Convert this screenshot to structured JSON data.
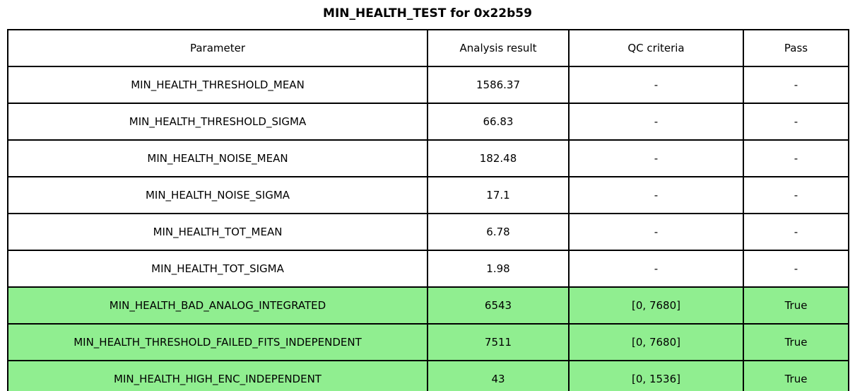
{
  "title": "MIN_HEALTH_TEST for 0x22b59",
  "colors": {
    "pass_row_background": "#90EE90",
    "table_border": "#000000",
    "page_background": "#FFFFFF",
    "text": "#000000"
  },
  "table": {
    "columns": [
      "Parameter",
      "Analysis result",
      "QC criteria",
      "Pass"
    ],
    "rows": [
      {
        "parameter": "MIN_HEALTH_THRESHOLD_MEAN",
        "analysis_result": "1586.37",
        "qc_criteria": "-",
        "pass": "-",
        "highlighted": false
      },
      {
        "parameter": "MIN_HEALTH_THRESHOLD_SIGMA",
        "analysis_result": "66.83",
        "qc_criteria": "-",
        "pass": "-",
        "highlighted": false
      },
      {
        "parameter": "MIN_HEALTH_NOISE_MEAN",
        "analysis_result": "182.48",
        "qc_criteria": "-",
        "pass": "-",
        "highlighted": false
      },
      {
        "parameter": "MIN_HEALTH_NOISE_SIGMA",
        "analysis_result": "17.1",
        "qc_criteria": "-",
        "pass": "-",
        "highlighted": false
      },
      {
        "parameter": "MIN_HEALTH_TOT_MEAN",
        "analysis_result": "6.78",
        "qc_criteria": "-",
        "pass": "-",
        "highlighted": false
      },
      {
        "parameter": "MIN_HEALTH_TOT_SIGMA",
        "analysis_result": "1.98",
        "qc_criteria": "-",
        "pass": "-",
        "highlighted": false
      },
      {
        "parameter": "MIN_HEALTH_BAD_ANALOG_INTEGRATED",
        "analysis_result": "6543",
        "qc_criteria": "[0, 7680]",
        "pass": "True",
        "highlighted": true
      },
      {
        "parameter": "MIN_HEALTH_THRESHOLD_FAILED_FITS_INDEPENDENT",
        "analysis_result": "7511",
        "qc_criteria": "[0, 7680]",
        "pass": "True",
        "highlighted": true
      },
      {
        "parameter": "MIN_HEALTH_HIGH_ENC_INDEPENDENT",
        "analysis_result": "43",
        "qc_criteria": "[0, 1536]",
        "pass": "True",
        "highlighted": true
      }
    ]
  }
}
